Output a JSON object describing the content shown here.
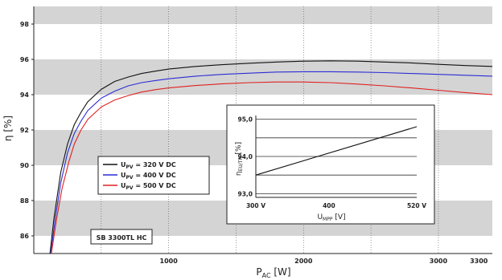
{
  "chart_data": [
    {
      "type": "line",
      "title": "",
      "xlabel_main": "P",
      "xlabel_sub": "AC",
      "xlabel_unit": "[W]",
      "ylabel": "η [%]",
      "xlim": [
        0,
        3400
      ],
      "ylim": [
        85,
        99
      ],
      "x_ticks": [
        1000,
        2000,
        3000,
        3300
      ],
      "x_tick_labels": [
        "1000",
        "2000",
        "3000",
        "3300"
      ],
      "y_ticks": [
        86,
        88,
        90,
        92,
        94,
        96,
        98
      ],
      "y_tick_labels": [
        "86",
        "88",
        "90",
        "92",
        "94",
        "96",
        "98"
      ],
      "grid": "alternating gray horizontal bands",
      "legend_position": "left",
      "legend_entries": [
        "U = 320 V DC",
        "U = 400 V DC",
        "U = 500 V DC"
      ],
      "legend_sub": "PV",
      "annotation": "SB 3300TL HC",
      "series": [
        {
          "name": "U PV = 320 V DC",
          "color": "#111111",
          "x": [
            120,
            150,
            200,
            250,
            300,
            350,
            400,
            500,
            600,
            700,
            800,
            900,
            1000,
            1200,
            1400,
            1600,
            1800,
            2000,
            2200,
            2400,
            2600,
            2800,
            3000,
            3200,
            3400
          ],
          "y": [
            85.0,
            87.0,
            89.6,
            91.2,
            92.3,
            93.0,
            93.6,
            94.3,
            94.75,
            95.0,
            95.2,
            95.33,
            95.45,
            95.6,
            95.7,
            95.78,
            95.85,
            95.9,
            95.92,
            95.9,
            95.85,
            95.8,
            95.72,
            95.65,
            95.6
          ]
        },
        {
          "name": "U PV = 400 V DC",
          "color": "#2b2bd6",
          "x": [
            125,
            160,
            200,
            250,
            300,
            350,
            400,
            500,
            600,
            700,
            800,
            900,
            1000,
            1200,
            1400,
            1600,
            1800,
            2000,
            2200,
            2400,
            2600,
            2800,
            3000,
            3200,
            3400
          ],
          "y": [
            85.0,
            87.0,
            89.0,
            90.7,
            91.8,
            92.5,
            93.1,
            93.8,
            94.2,
            94.5,
            94.68,
            94.8,
            94.9,
            95.05,
            95.15,
            95.22,
            95.28,
            95.3,
            95.3,
            95.28,
            95.25,
            95.2,
            95.15,
            95.1,
            95.05
          ]
        },
        {
          "name": "U PV = 500 V DC",
          "color": "#e02020",
          "x": [
            130,
            170,
            210,
            260,
            300,
            350,
            400,
            500,
            600,
            700,
            800,
            900,
            1000,
            1200,
            1400,
            1600,
            1800,
            2000,
            2200,
            2400,
            2600,
            2800,
            3000,
            3200,
            3400
          ],
          "y": [
            85.0,
            87.0,
            88.7,
            90.2,
            91.2,
            92.0,
            92.6,
            93.3,
            93.7,
            93.95,
            94.15,
            94.28,
            94.38,
            94.52,
            94.62,
            94.68,
            94.72,
            94.72,
            94.68,
            94.6,
            94.5,
            94.38,
            94.25,
            94.12,
            94.0
          ]
        }
      ]
    },
    {
      "type": "line",
      "title": "",
      "xlabel_main": "U",
      "xlabel_sub": "MPP",
      "xlabel_unit": "[V]",
      "ylabel_main": "η",
      "ylabel_sub": "EU/TR",
      "ylabel_unit": "[%]",
      "xlim": [
        300,
        520
      ],
      "ylim": [
        92.9,
        95.1
      ],
      "x_ticks": [
        300,
        400,
        520
      ],
      "x_tick_labels": [
        "300 V",
        "400",
        "520 V"
      ],
      "y_ticks": [
        93.0,
        94.0,
        95.0
      ],
      "y_tick_labels": [
        "93,0",
        "94,0",
        "95,0"
      ],
      "grid": "horizontal lines",
      "series": [
        {
          "name": "",
          "color": "#111111",
          "x": [
            300,
            520
          ],
          "y": [
            93.5,
            94.8
          ]
        }
      ]
    }
  ]
}
